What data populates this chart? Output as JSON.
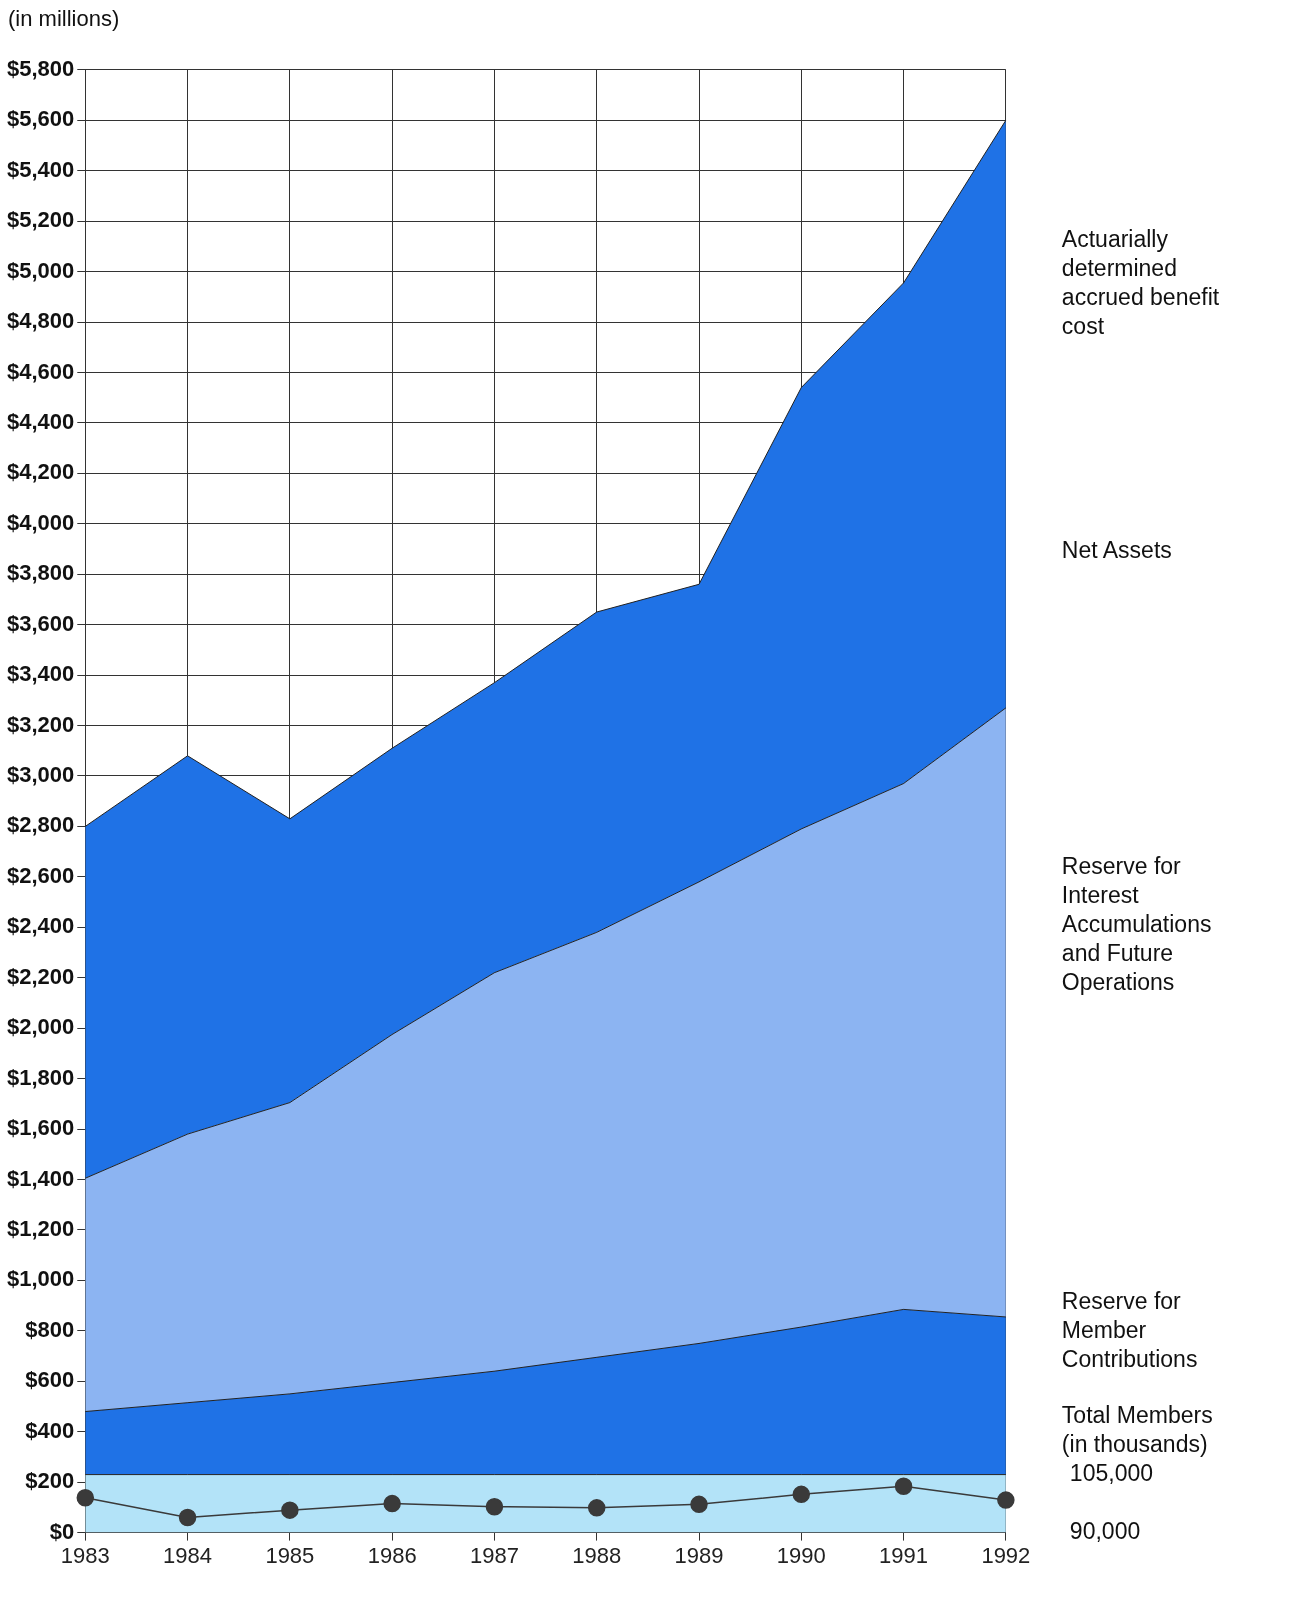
{
  "chart_data": {
    "type": "area",
    "stacked": true,
    "grid": true,
    "ylabel": "(in millions)",
    "y2label": "Total Members (in thousands)",
    "categories": [
      "1983",
      "1984",
      "1985",
      "1986",
      "1987",
      "1988",
      "1989",
      "1990",
      "1991",
      "1992"
    ],
    "ylim": [
      0,
      5800
    ],
    "yticks": [
      {
        "value": 0,
        "label": "$0"
      },
      {
        "value": 200,
        "label": "$200"
      },
      {
        "value": 400,
        "label": "$400"
      },
      {
        "value": 600,
        "label": "$600"
      },
      {
        "value": 800,
        "label": "$800"
      },
      {
        "value": 1000,
        "label": "$1,000"
      },
      {
        "value": 1200,
        "label": "$1,200"
      },
      {
        "value": 1400,
        "label": "$1,400"
      },
      {
        "value": 1600,
        "label": "$1,600"
      },
      {
        "value": 1800,
        "label": "$1,800"
      },
      {
        "value": 2000,
        "label": "$2,000"
      },
      {
        "value": 2200,
        "label": "$2,200"
      },
      {
        "value": 2400,
        "label": "$2,400"
      },
      {
        "value": 2600,
        "label": "$2,600"
      },
      {
        "value": 2800,
        "label": "$2,800"
      },
      {
        "value": 3000,
        "label": "$3,000"
      },
      {
        "value": 3200,
        "label": "$3,200"
      },
      {
        "value": 3400,
        "label": "$3,400"
      },
      {
        "value": 3600,
        "label": "$3,600"
      },
      {
        "value": 3800,
        "label": "$3,800"
      },
      {
        "value": 4000,
        "label": "$4,000"
      },
      {
        "value": 4200,
        "label": "$4,200"
      },
      {
        "value": 4400,
        "label": "$4,400"
      },
      {
        "value": 4600,
        "label": "$4,600"
      },
      {
        "value": 4800,
        "label": "$4,800"
      },
      {
        "value": 5000,
        "label": "$5,000"
      },
      {
        "value": 5200,
        "label": "$5,200"
      },
      {
        "value": 5400,
        "label": "$5,400"
      },
      {
        "value": 5600,
        "label": "$5,600"
      },
      {
        "value": 5800,
        "label": "$5,800"
      }
    ],
    "y2lim": [
      90000,
      468261
    ],
    "y2ticks": [
      {
        "value": 90000,
        "label": "90,000"
      },
      {
        "value": 105000,
        "label": "105,000"
      }
    ],
    "annotations": [
      "Actuarially determined accrued benefit cost"
    ],
    "series": [
      {
        "color": "#b3e3f8",
        "values": [
          230,
          230,
          230,
          230,
          230,
          230,
          230,
          230,
          230,
          230
        ]
      },
      {
        "name": "Reserve for Member Contributions",
        "color": "#1f72e6",
        "values": [
          250,
          285,
          320,
          365,
          410,
          465,
          520,
          585,
          655,
          625
        ]
      },
      {
        "name": "Reserve for Interest Accumulations and Future Operations",
        "color": "#8cb4f2",
        "values": [
          925,
          1065,
          1155,
          1380,
          1580,
          1685,
          1830,
          1975,
          2085,
          2415
        ]
      },
      {
        "name": "Net Assets",
        "color": "#1f72e6",
        "values": [
          1395,
          1500,
          1125,
          1135,
          1150,
          1270,
          1180,
          1750,
          1985,
          2330
        ]
      },
      {
        "type": "line",
        "axis": "y2",
        "marker": "circle",
        "color": "#3a3a3a",
        "values": [
          99000,
          93900,
          95800,
          97500,
          96700,
          96400,
          97300,
          99900,
          102000,
          98400
        ]
      }
    ]
  }
}
